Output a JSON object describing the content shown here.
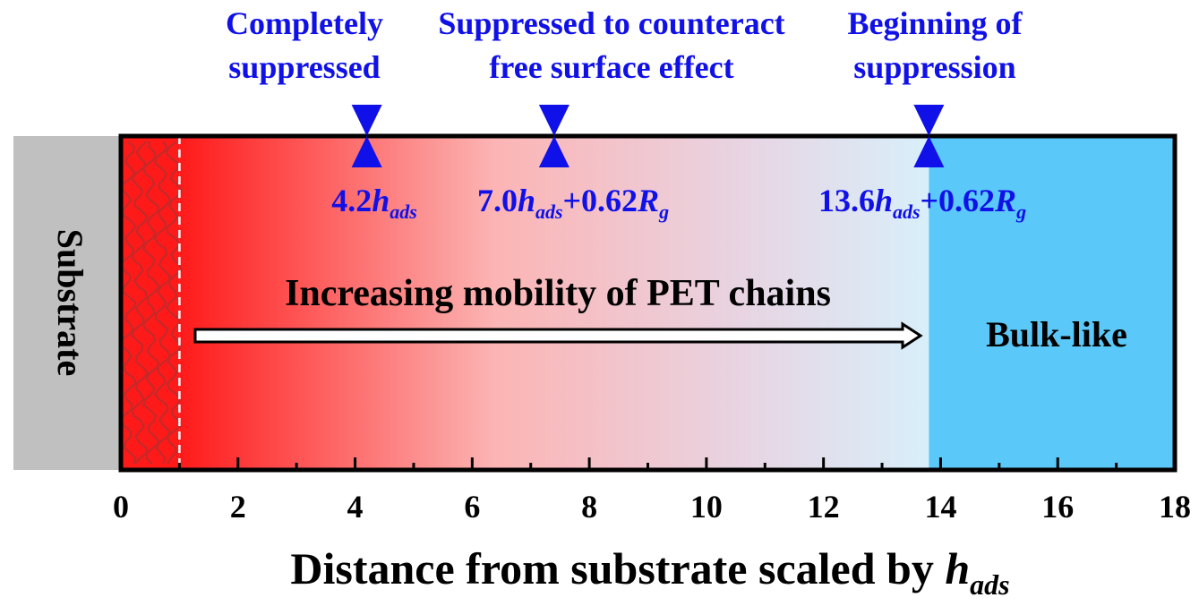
{
  "substrate_label": "Substrate",
  "bulk_label": "Bulk-like",
  "mobility_label": "Increasing mobility of PET chains",
  "xlabel": {
    "text": "Distance from substrate scaled by ",
    "var": "h",
    "sub": "ads"
  },
  "axis": {
    "min": 0,
    "max": 18,
    "ticks": [
      "0",
      "2",
      "4",
      "6",
      "8",
      "10",
      "12",
      "14",
      "16",
      "18"
    ],
    "minor_step": 1
  },
  "colors": {
    "substrate_gray": "#c0c0c0",
    "red": "#ff1a1a",
    "light_blue": "#5ac8f8",
    "annotation_blue": "#1010e8",
    "chain_red": "#c82828"
  },
  "adsorbed_layer_end": 1.0,
  "gradient_end": 13.8,
  "markers": [
    {
      "x": 4.2,
      "title": [
        "Completely",
        "suppressed"
      ],
      "label_num": "4.2",
      "label_var": "h",
      "label_sub": "ads",
      "label_tail": "",
      "label_tail_var": "",
      "label_tail_sub": ""
    },
    {
      "x": 7.4,
      "title": [
        "Suppressed to counteract",
        "free surface effect"
      ],
      "label_num": "7.0",
      "label_var": "h",
      "label_sub": "ads",
      "label_tail": "+0.62",
      "label_tail_var": "R",
      "label_tail_sub": "g"
    },
    {
      "x": 13.8,
      "title": [
        "Beginning of",
        "suppression"
      ],
      "label_num": "13.6",
      "label_var": "h",
      "label_sub": "ads",
      "label_tail": "+0.62",
      "label_tail_var": "R",
      "label_tail_sub": "g"
    }
  ]
}
